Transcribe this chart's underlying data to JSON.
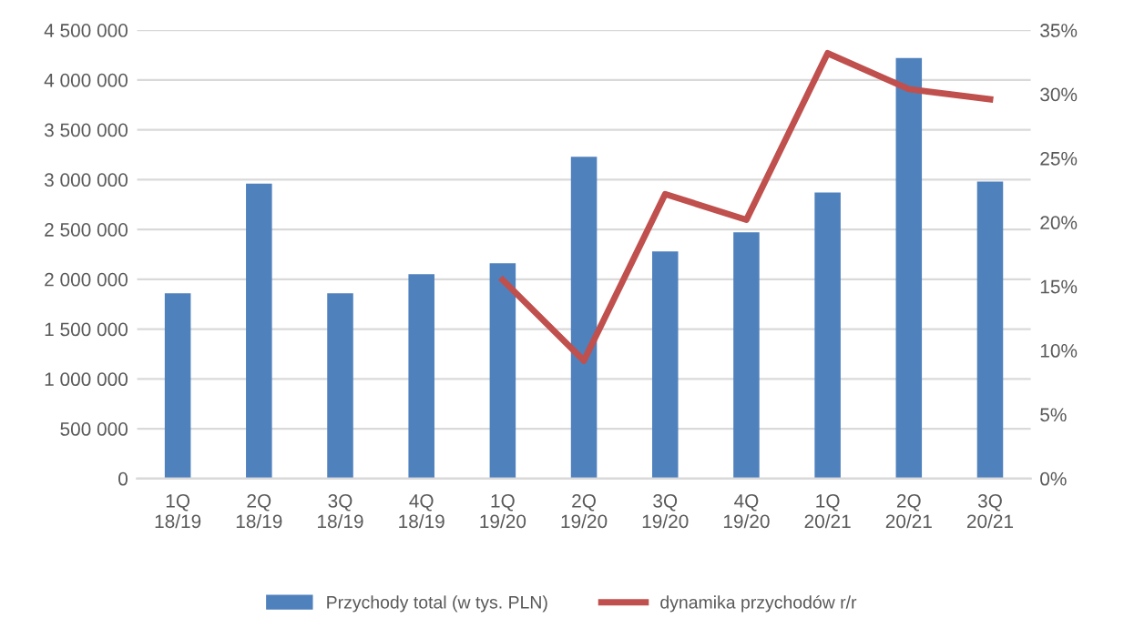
{
  "chart_data": {
    "type": "bar",
    "categories": [
      "1Q\n18/19",
      "2Q\n18/19",
      "3Q\n18/19",
      "4Q\n18/19",
      "1Q\n19/20",
      "2Q\n19/20",
      "3Q\n19/20",
      "4Q\n19/20",
      "1Q\n20/21",
      "2Q\n20/21",
      "3Q\n20/21"
    ],
    "series": [
      {
        "name": "Przychody total (w tys. PLN)",
        "color": "#4f81bd",
        "values": [
          1860000,
          2960000,
          1860000,
          2050000,
          2160000,
          3230000,
          2280000,
          2470000,
          2870000,
          4220000,
          2980000
        ]
      },
      {
        "name": "dynamika przychodów r/r",
        "type": "line",
        "axis": "y2",
        "color": "#c0504d",
        "values": [
          null,
          null,
          null,
          null,
          15.5,
          9.2,
          22.2,
          20.2,
          33.2,
          30.4,
          29.6
        ]
      }
    ],
    "ylim": [
      0,
      4500000
    ],
    "yticks": [
      0,
      {
        "value": 500000,
        "label": "500 000"
      },
      {
        "value": 1000000,
        "label": "1 000 000"
      },
      {
        "value": 1500000,
        "label": "1 500 000"
      },
      {
        "value": 2000000,
        "label": "2 000 000"
      },
      {
        "value": 2500000,
        "label": "2 500 000"
      },
      {
        "value": 3000000,
        "label": "3 000 000"
      },
      {
        "value": 3500000,
        "label": "3 500 000"
      },
      {
        "value": 4000000,
        "label": "4 000 000"
      },
      {
        "value": 4500000,
        "label": "4 500 000"
      }
    ],
    "y2lim": [
      0,
      35
    ],
    "y2ticks": [
      {
        "value": 0,
        "label": "0%"
      },
      {
        "value": 5,
        "label": "5%"
      },
      {
        "value": 10,
        "label": "10%"
      },
      {
        "value": 15,
        "label": "15%"
      },
      {
        "value": 20,
        "label": "20%"
      },
      {
        "value": 25,
        "label": "25%"
      },
      {
        "value": 30,
        "label": "30%"
      },
      {
        "value": 35,
        "label": "35%"
      }
    ],
    "grid": "y",
    "legend": "bottom",
    "marker": "none",
    "line_style": "solid"
  }
}
